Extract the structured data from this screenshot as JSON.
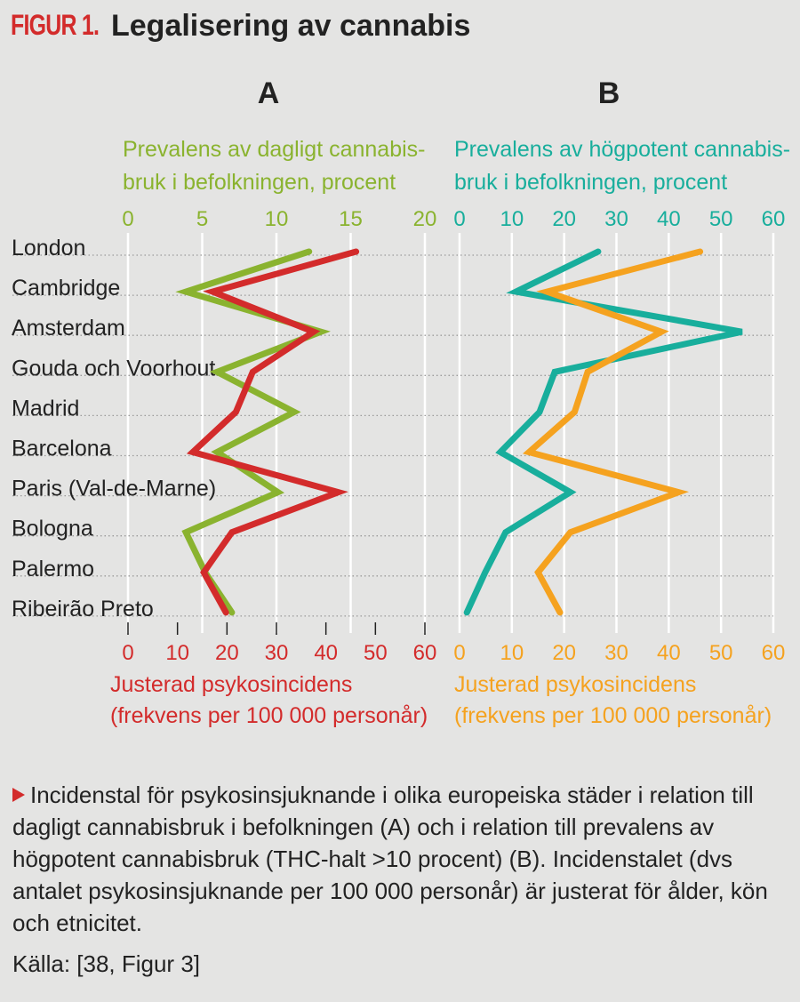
{
  "header": {
    "figure_label": "FIGUR 1.",
    "title": "Legalisering av cannabis"
  },
  "caption": "Incidenstal för psykosinsjuknande i olika europeiska städer i relation till dagligt cannabisbruk i befolkningen (A) och i relation till prevalens av högpotent cannabisbruk (THC-halt >10 procent) (B). Incidenstalet (dvs antalet psykosinsjuknande per 100 000 personår) är justerat för ålder, kön och etnicitet.",
  "source": "Källa: [38, Figur 3]",
  "colors": {
    "red": "#d32b2b",
    "green": "#8ab32f",
    "teal": "#18ae9c",
    "orange": "#f5a21f",
    "text": "#222222",
    "background": "#e4e4e3"
  },
  "chart_data": [
    {
      "type": "line",
      "panel": "A",
      "categories": [
        "London",
        "Cambridge",
        "Amsterdam",
        "Gouda och Voorhout",
        "Madrid",
        "Barcelona",
        "Paris (Val-de-Marne)",
        "Bologna",
        "Palermo",
        "Ribeirão Preto"
      ],
      "top_axis": {
        "label_line1": "Prevalens av dagligt cannabis-",
        "label_line2": "bruk i befolkningen, procent",
        "range": [
          0,
          20
        ],
        "ticks": [
          "0",
          "5",
          "10",
          "15",
          "20"
        ]
      },
      "bottom_axis": {
        "label_line1": "Justerad psykosincidens",
        "label_line2": "(frekvens per 100 000 personår)",
        "range": [
          0,
          60
        ],
        "ticks": [
          "0",
          "10",
          "20",
          "30",
          "40",
          "50",
          "60"
        ]
      },
      "series": [
        {
          "axis": "top",
          "color": "green",
          "values": [
            12.2,
            3.9,
            13.0,
            6.0,
            11.2,
            6.0,
            10.1,
            3.9,
            5.2,
            7.0
          ]
        },
        {
          "axis": "bottom",
          "color": "red",
          "values": [
            46.1,
            17.1,
            37.5,
            25.2,
            21.8,
            13.1,
            42.5,
            21.0,
            15.3,
            19.8
          ]
        }
      ],
      "grid": true
    },
    {
      "type": "line",
      "panel": "B",
      "categories": [
        "London",
        "Cambridge",
        "Amsterdam",
        "Gouda och Voorhout",
        "Madrid",
        "Barcelona",
        "Paris (Val-de-Marne)",
        "Bologna",
        "Palermo",
        "Ribeirão Preto"
      ],
      "top_axis": {
        "label_line1": "Prevalens av högpotent cannabis-",
        "label_line2": "bruk i befolkningen, procent",
        "range": [
          0,
          60
        ],
        "ticks": [
          "0",
          "10",
          "20",
          "30",
          "40",
          "50",
          "60"
        ]
      },
      "bottom_axis": {
        "label_line1": "Justerad psykosincidens",
        "label_line2": "(frekvens per 100 000 personår)",
        "range": [
          0,
          60
        ],
        "ticks": [
          "0",
          "10",
          "20",
          "30",
          "40",
          "50",
          "60"
        ]
      },
      "series": [
        {
          "axis": "top",
          "color": "teal",
          "values": [
            26.5,
            10.8,
            54.0,
            18.2,
            15.3,
            7.8,
            21.2,
            8.8,
            4.9,
            1.4
          ]
        },
        {
          "axis": "bottom",
          "color": "orange",
          "values": [
            46.0,
            16.7,
            38.6,
            24.5,
            22.0,
            13.3,
            41.9,
            21.2,
            15.0,
            19.2
          ]
        }
      ],
      "grid": true
    }
  ]
}
